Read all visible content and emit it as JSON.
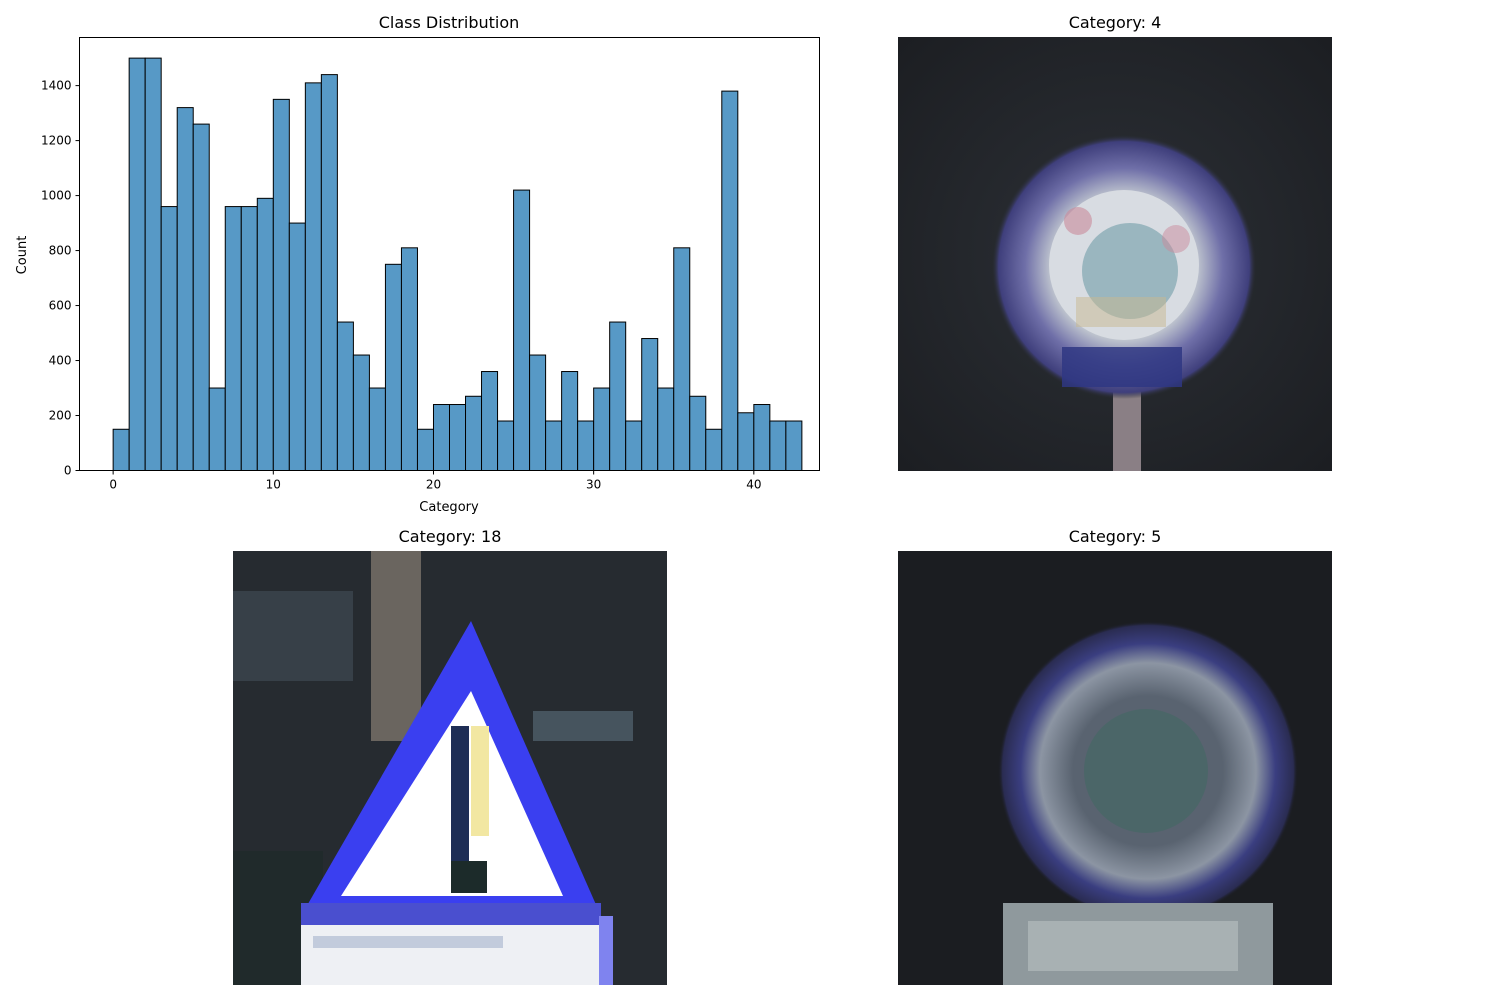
{
  "chart_data": [
    {
      "type": "bar",
      "title": "Class Distribution",
      "xlabel": "Category",
      "ylabel": "Count",
      "xlim": [
        -2.1,
        44.1
      ],
      "ylim": [
        0,
        1575
      ],
      "xticks": [
        0,
        10,
        20,
        30,
        40
      ],
      "yticks": [
        0,
        200,
        400,
        600,
        800,
        1000,
        1200,
        1400
      ],
      "bar_color": "#5799c6",
      "edge_color": "#000000",
      "bins": [
        {
          "x0": 0.0,
          "x1": 1.0,
          "value": 150
        },
        {
          "x0": 1.0,
          "x1": 2.0,
          "value": 1500
        },
        {
          "x0": 2.0,
          "x1": 3.0,
          "value": 1500
        },
        {
          "x0": 3.0,
          "x1": 4.0,
          "value": 960
        },
        {
          "x0": 4.0,
          "x1": 5.0,
          "value": 1320
        },
        {
          "x0": 5.0,
          "x1": 6.0,
          "value": 1260
        },
        {
          "x0": 6.0,
          "x1": 7.0,
          "value": 300
        },
        {
          "x0": 7.0,
          "x1": 8.0,
          "value": 960
        },
        {
          "x0": 8.0,
          "x1": 9.0,
          "value": 960
        },
        {
          "x0": 9.0,
          "x1": 10.0,
          "value": 990
        },
        {
          "x0": 10.0,
          "x1": 11.0,
          "value": 1350
        },
        {
          "x0": 11.0,
          "x1": 12.0,
          "value": 900
        },
        {
          "x0": 12.0,
          "x1": 13.0,
          "value": 1410
        },
        {
          "x0": 13.0,
          "x1": 14.0,
          "value": 1440
        },
        {
          "x0": 14.0,
          "x1": 15.0,
          "value": 540
        },
        {
          "x0": 15.0,
          "x1": 16.0,
          "value": 420
        },
        {
          "x0": 16.0,
          "x1": 17.0,
          "value": 300
        },
        {
          "x0": 17.0,
          "x1": 18.0,
          "value": 750
        },
        {
          "x0": 18.0,
          "x1": 19.0,
          "value": 810
        },
        {
          "x0": 19.0,
          "x1": 20.0,
          "value": 150
        },
        {
          "x0": 20.0,
          "x1": 21.0,
          "value": 240
        },
        {
          "x0": 21.0,
          "x1": 22.0,
          "value": 240
        },
        {
          "x0": 22.0,
          "x1": 23.0,
          "value": 270
        },
        {
          "x0": 23.0,
          "x1": 24.0,
          "value": 360
        },
        {
          "x0": 24.0,
          "x1": 25.0,
          "value": 180
        },
        {
          "x0": 25.0,
          "x1": 26.0,
          "value": 1020
        },
        {
          "x0": 26.0,
          "x1": 27.0,
          "value": 420
        },
        {
          "x0": 27.0,
          "x1": 28.0,
          "value": 180
        },
        {
          "x0": 28.0,
          "x1": 29.0,
          "value": 360
        },
        {
          "x0": 29.0,
          "x1": 30.0,
          "value": 180
        },
        {
          "x0": 30.0,
          "x1": 31.0,
          "value": 300
        },
        {
          "x0": 31.0,
          "x1": 32.0,
          "value": 540
        },
        {
          "x0": 32.0,
          "x1": 33.0,
          "value": 180
        },
        {
          "x0": 33.0,
          "x1": 34.0,
          "value": 480
        },
        {
          "x0": 34.0,
          "x1": 35.0,
          "value": 300
        },
        {
          "x0": 35.0,
          "x1": 36.0,
          "value": 810
        },
        {
          "x0": 36.0,
          "x1": 37.0,
          "value": 270
        },
        {
          "x0": 37.0,
          "x1": 38.0,
          "value": 150
        },
        {
          "x0": 38.0,
          "x1": 39.0,
          "value": 1380
        },
        {
          "x0": 39.0,
          "x1": 40.0,
          "value": 210
        },
        {
          "x0": 40.0,
          "x1": 41.0,
          "value": 240
        },
        {
          "x0": 41.0,
          "x1": 42.0,
          "value": 180
        },
        {
          "x0": 42.0,
          "x1": 43.0,
          "value": 180
        }
      ]
    }
  ],
  "panels": {
    "top_right": {
      "title": "Category: 4"
    },
    "bottom_left": {
      "title": "Category: 18"
    },
    "bottom_right": {
      "title": "Category: 5"
    }
  }
}
